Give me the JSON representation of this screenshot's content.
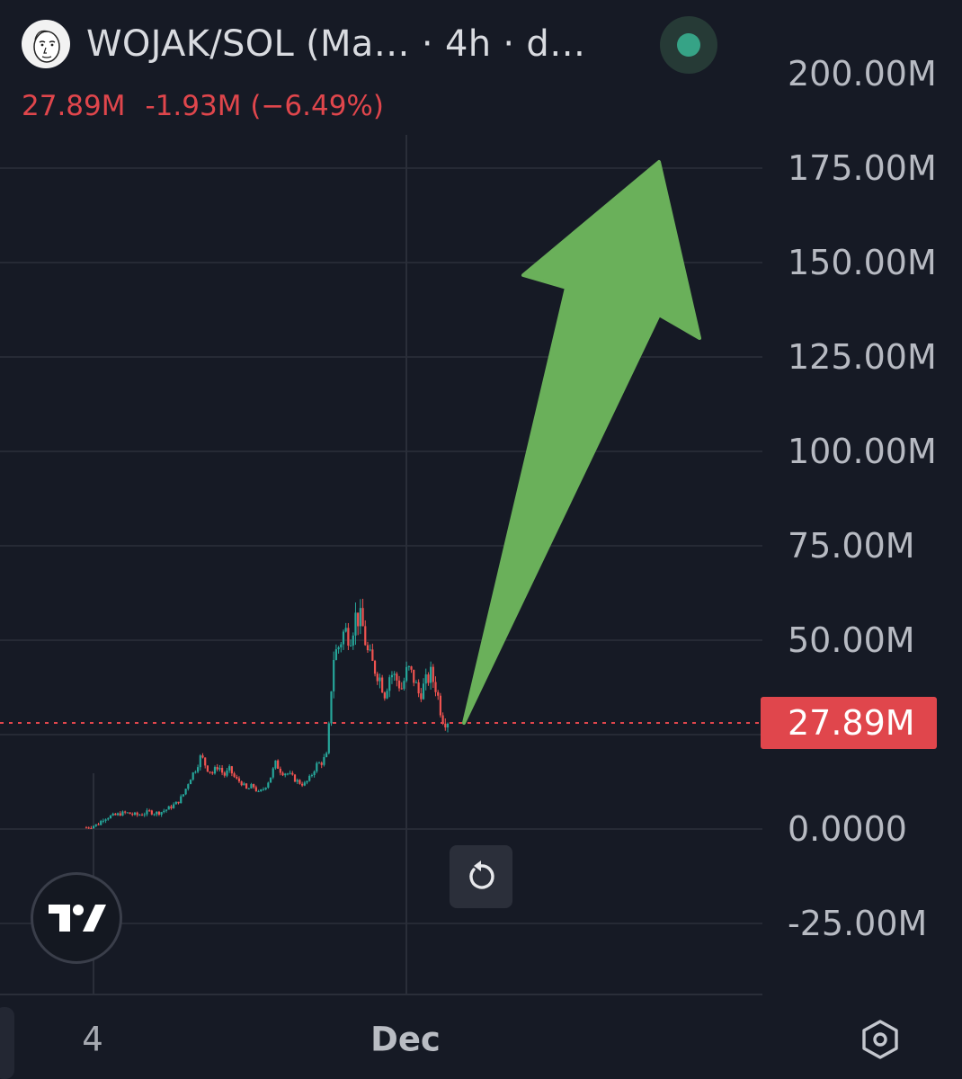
{
  "header": {
    "title": "WOJAK/SOL (Ma… · 4h · d…",
    "avatar_icon": "wojak-face-avatar",
    "status_icon": "live-status-dot",
    "status_color": "#36a386"
  },
  "price": {
    "last": "27.89M",
    "change": "-1.93M",
    "change_pct": "(−6.49%)",
    "color": "#e0464c"
  },
  "y_axis_labels": [
    "200.00M",
    "175.00M",
    "150.00M",
    "125.00M",
    "100.00M",
    "75.00M",
    "50.00M",
    "0.0000",
    "-25.00M"
  ],
  "x_axis_labels": [
    "4",
    "Dec"
  ],
  "current_price_tag": "27.89M",
  "controls": {
    "reset_icon": "reset-chart-icon",
    "logo_icon": "tradingview-logo-icon",
    "settings_icon": "settings-hexagon-icon"
  },
  "colors": {
    "background": "#161a25",
    "up": "#26a69a",
    "down": "#ef5350",
    "arrow": "#6ab05a"
  },
  "chart_data": {
    "type": "candlestick",
    "title": "WOJAK/SOL (Ma… · 4h · d…",
    "y_range": [
      -25000000,
      200000000
    ],
    "y_ticks": [
      200000000,
      175000000,
      150000000,
      125000000,
      100000000,
      75000000,
      50000000,
      25000000,
      0,
      -25000000
    ],
    "last_value": 27890000,
    "close_trend": [
      0.4,
      0.8,
      1.2,
      2.8,
      3.3,
      3.6,
      4.1,
      4.3,
      3.9,
      3.7,
      4.1,
      4.6,
      4.2,
      4.5,
      5.2,
      6.1,
      7.2,
      9.4,
      13.2,
      15.8,
      19.4,
      16.2,
      14.8,
      16.9,
      14.1,
      15.8,
      13.2,
      12.4,
      10.3,
      11.6,
      9.5,
      10.8,
      13.4,
      17.4,
      15.2,
      14.8,
      13.6,
      12.4,
      11.8,
      13.5,
      16.8,
      17.7,
      19.5,
      45.2,
      48.4,
      52.6,
      51.2,
      56.5,
      54.9,
      46.8,
      43.2,
      40.7,
      36.1,
      41.4,
      39.8,
      37.2,
      42.5,
      40.1,
      35.6,
      38.2,
      41.1,
      37.3,
      29.6,
      27.89
    ],
    "annotation": "upward green arrow"
  }
}
